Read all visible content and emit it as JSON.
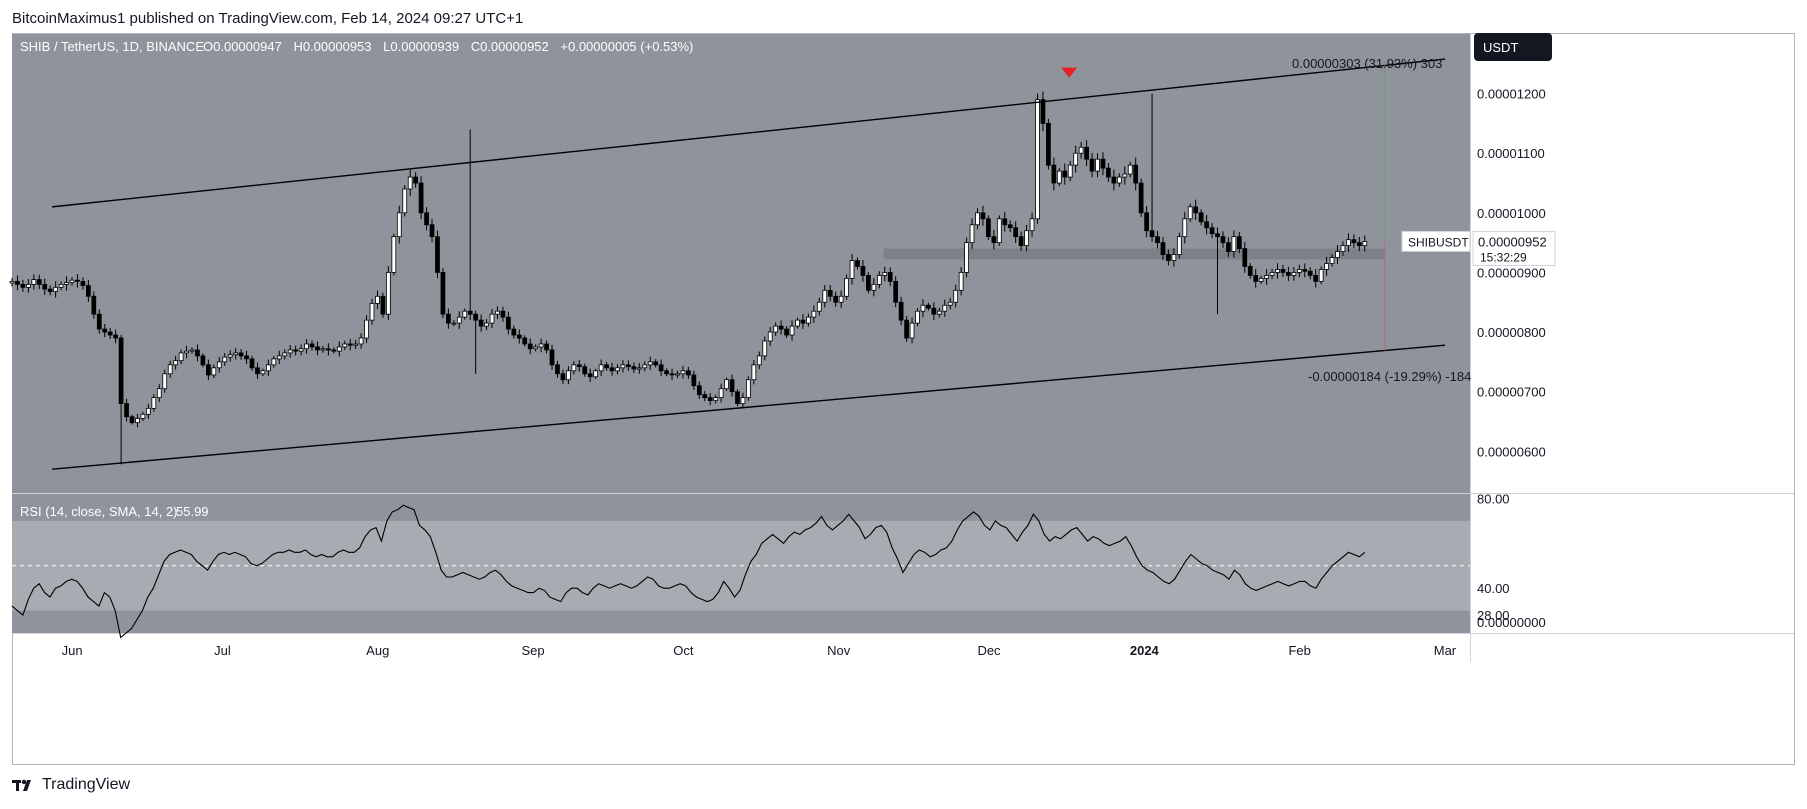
{
  "publisher_line": "BitcoinMaximus1 published on TradingView.com, Feb 14, 2024 09:27 UTC+1",
  "footer_brand": "TradingView",
  "colors": {
    "pane_bg": "#8f939b",
    "rsi_band": "#a8abb2",
    "bull": "#ffffff",
    "bear": "#000000",
    "marker": "#e82020",
    "axis_bg": "#ffffff"
  },
  "chart_data": {
    "type": "candlestick",
    "symbol_line": {
      "symbol": "SHIB / TetherUS, 1D, BINANCE",
      "o": "0.00000947",
      "h": "0.00000953",
      "l": "0.00000939",
      "c": "0.00000952",
      "change": "+0.00000005 (+0.53%)"
    },
    "currency_badge": "USDT",
    "price_ticks": [
      "0.00001200",
      "0.00001100",
      "0.00001000",
      "0.00000900",
      "0.00000800",
      "0.00000700",
      "0.00000600"
    ],
    "price_ylim": [
      5.3e-06,
      1.3e-05
    ],
    "last_price": {
      "label": "SHIBUSDT",
      "value": "0.00000952",
      "countdown": "15:32:29"
    },
    "x_labels": [
      "Jun",
      "Jul",
      "Aug",
      "Sep",
      "Oct",
      "Nov",
      "Dec",
      "2024",
      "Feb",
      "Mar"
    ],
    "x_label_dates": [
      "2023-06-01",
      "2023-07-01",
      "2023-08-01",
      "2023-09-01",
      "2023-10-01",
      "2023-11-01",
      "2023-12-01",
      "2024-01-01",
      "2024-02-01",
      "2024-03-01"
    ],
    "x_range": [
      "2023-05-20",
      "2024-03-06"
    ],
    "closes": [
      8.85e-06,
      8.8e-06,
      8.75e-06,
      8.8e-06,
      8.88e-06,
      8.8e-06,
      8.72e-06,
      8.68e-06,
      8.75e-06,
      8.8e-06,
      8.83e-06,
      8.87e-06,
      8.85e-06,
      8.78e-06,
      8.6e-06,
      8.3e-06,
      8.05e-06,
      8e-06,
      7.95e-06,
      7.9e-06,
      6.8e-06,
      6.58e-06,
      6.48e-06,
      6.55e-06,
      6.62e-06,
      6.72e-06,
      6.9e-06,
      7.05e-06,
      7.3e-06,
      7.45e-06,
      7.52e-06,
      7.65e-06,
      7.68e-06,
      7.7e-06,
      7.6e-06,
      7.45e-06,
      7.28e-06,
      7.4e-06,
      7.5e-06,
      7.58e-06,
      7.62e-06,
      7.65e-06,
      7.6e-06,
      7.55e-06,
      7.4e-06,
      7.3e-06,
      7.35e-06,
      7.45e-06,
      7.55e-06,
      7.6e-06,
      7.65e-06,
      7.7e-06,
      7.68e-06,
      7.72e-06,
      7.8e-06,
      7.75e-06,
      7.7e-06,
      7.72e-06,
      7.7e-06,
      7.68e-06,
      7.75e-06,
      7.8e-06,
      7.78e-06,
      7.8e-06,
      7.9e-06,
      8.2e-06,
      8.48e-06,
      8.6e-06,
      8.3e-06,
      9e-06,
      9.6e-06,
      1e-05,
      1.04e-05,
      1.06e-05,
      1.05e-05,
      1e-05,
      9.8e-06,
      9.6e-06,
      9e-06,
      8.3e-06,
      8.15e-06,
      8.15e-06,
      8.25e-06,
      8.35e-06,
      8.3e-06,
      8.2e-06,
      8.1e-06,
      8.15e-06,
      8.3e-06,
      8.35e-06,
      8.25e-06,
      8.05e-06,
      7.95e-06,
      7.9e-06,
      7.8e-06,
      7.72e-06,
      7.75e-06,
      7.8e-06,
      7.7e-06,
      7.45e-06,
      7.3e-06,
      7.2e-06,
      7.35e-06,
      7.45e-06,
      7.42e-06,
      7.3e-06,
      7.25e-06,
      7.35e-06,
      7.45e-06,
      7.4e-06,
      7.35e-06,
      7.4e-06,
      7.45e-06,
      7.42e-06,
      7.38e-06,
      7.4e-06,
      7.45e-06,
      7.5e-06,
      7.45e-06,
      7.35e-06,
      7.3e-06,
      7.28e-06,
      7.3e-06,
      7.35e-06,
      7.28e-06,
      7.1e-06,
      6.95e-06,
      6.9e-06,
      6.85e-06,
      6.9e-06,
      7.05e-06,
      7.2e-06,
      7e-06,
      6.8e-06,
      6.9e-06,
      7.2e-06,
      7.45e-06,
      7.6e-06,
      7.85e-06,
      8e-06,
      8.1e-06,
      8.05e-06,
      7.95e-06,
      8.1e-06,
      8.2e-06,
      8.15e-06,
      8.25e-06,
      8.35e-06,
      8.5e-06,
      8.7e-06,
      8.6e-06,
      8.5e-06,
      8.6e-06,
      8.9e-06,
      9.2e-06,
      9.1e-06,
      8.95e-06,
      8.7e-06,
      8.8e-06,
      8.95e-06,
      9e-06,
      8.85e-06,
      8.5e-06,
      8.2e-06,
      7.9e-06,
      8.15e-06,
      8.35e-06,
      8.45e-06,
      8.4e-06,
      8.3e-06,
      8.35e-06,
      8.45e-06,
      8.5e-06,
      8.7e-06,
      9e-06,
      9.5e-06,
      9.8e-06,
      1e-05,
      9.9e-06,
      9.6e-06,
      9.5e-06,
      9.9e-06,
      9.8e-06,
      9.75e-06,
      9.6e-06,
      9.45e-06,
      9.7e-06,
      9.9e-06,
      1.19e-05,
      1.15e-05,
      1.08e-05,
      1.05e-05,
      1.07e-05,
      1.06e-05,
      1.08e-05,
      1.1e-05,
      1.11e-05,
      1.09e-05,
      1.07e-05,
      1.09e-05,
      1.075e-05,
      1.06e-05,
      1.05e-05,
      1.06e-05,
      1.065e-05,
      1.08e-05,
      1.05e-05,
      1e-05,
      9.7e-06,
      9.6e-06,
      9.5e-06,
      9.3e-06,
      9.2e-06,
      9.3e-06,
      9.6e-06,
      9.9e-06,
      1.01e-05,
      1e-05,
      9.85e-06,
      9.75e-06,
      9.65e-06,
      9.6e-06,
      9.5e-06,
      9.35e-06,
      9.6e-06,
      9.4e-06,
      9.1e-06,
      8.95e-06,
      8.85e-06,
      8.9e-06,
      8.95e-06,
      9e-06,
      9.05e-06,
      9e-06,
      8.95e-06,
      9e-06,
      9.05e-06,
      9.02e-06,
      8.95e-06,
      8.85e-06,
      9.05e-06,
      9.15e-06,
      9.25e-06,
      9.35e-06,
      9.45e-06,
      9.55e-06,
      9.5e-06,
      9.45e-06,
      9.52e-06
    ],
    "channel": {
      "upper": [
        [
          "2023-05-28",
          1.01e-05
        ],
        [
          "2024-03-01",
          1.258e-05
        ]
      ],
      "lower": [
        [
          "2023-05-28",
          5.7e-06
        ],
        [
          "2024-03-01",
          7.78e-06
        ]
      ]
    },
    "support_zone": [
      9.22e-06,
      9.4e-06
    ],
    "support_zone_dates": [
      "2023-11-10",
      "2024-02-18"
    ],
    "marker": {
      "date": "2023-12-17",
      "price": 1.21e-05
    },
    "measure_up": {
      "text": "0.00000303 (31.93%) 303",
      "value": 1.255e-05
    },
    "measure_down": {
      "text": "-0.00000184 (-19.29%) -184",
      "value": 7.68e-06
    },
    "measure_date": "2024-02-18",
    "rsi": {
      "label": "RSI (14, close, SMA, 14, 2)",
      "value": "55.99",
      "ticks": [
        "80.00",
        "40.00",
        "28.00"
      ],
      "ylim": [
        20,
        82
      ],
      "band": [
        30,
        70
      ],
      "mid": 50,
      "values": [
        32,
        30,
        28,
        35,
        40,
        42,
        38,
        36,
        40,
        41,
        43,
        44,
        43,
        40,
        36,
        34,
        32,
        38,
        36,
        30,
        18,
        20,
        22,
        26,
        30,
        36,
        40,
        46,
        52,
        55,
        56,
        57,
        56,
        55,
        52,
        50,
        48,
        52,
        55,
        56,
        55,
        56,
        55,
        54,
        51,
        50,
        51,
        53,
        55,
        56,
        56,
        57,
        56,
        56,
        57,
        55,
        54,
        55,
        54,
        54,
        56,
        57,
        56,
        56,
        58,
        63,
        66,
        67,
        61,
        70,
        74,
        75,
        77,
        76,
        75,
        68,
        66,
        63,
        56,
        48,
        45,
        45,
        46,
        47,
        46,
        45,
        44,
        45,
        47,
        48,
        46,
        43,
        41,
        40,
        39,
        38,
        38,
        40,
        39,
        36,
        35,
        34,
        38,
        40,
        40,
        38,
        37,
        40,
        42,
        41,
        40,
        41,
        42,
        41,
        40,
        41,
        43,
        45,
        44,
        41,
        40,
        40,
        41,
        42,
        41,
        38,
        36,
        35,
        34,
        35,
        38,
        43,
        40,
        36,
        39,
        46,
        52,
        55,
        60,
        62,
        64,
        62,
        60,
        63,
        65,
        64,
        66,
        67,
        69,
        72,
        68,
        66,
        68,
        70,
        73,
        70,
        67,
        62,
        64,
        67,
        68,
        65,
        58,
        53,
        47,
        51,
        55,
        57,
        56,
        54,
        55,
        57,
        58,
        61,
        66,
        70,
        72,
        74,
        72,
        68,
        66,
        70,
        68,
        67,
        64,
        61,
        65,
        68,
        73,
        70,
        64,
        61,
        63,
        62,
        64,
        66,
        67,
        64,
        61,
        63,
        62,
        60,
        59,
        60,
        61,
        63,
        59,
        54,
        50,
        48,
        47,
        45,
        43,
        42,
        44,
        48,
        52,
        55,
        53,
        51,
        50,
        48,
        47,
        46,
        44,
        48,
        46,
        42,
        40,
        39,
        40,
        41,
        42,
        43,
        42,
        41,
        42,
        43,
        43,
        41,
        40,
        44,
        47,
        50,
        52,
        54,
        56,
        55,
        54,
        56
      ]
    }
  }
}
